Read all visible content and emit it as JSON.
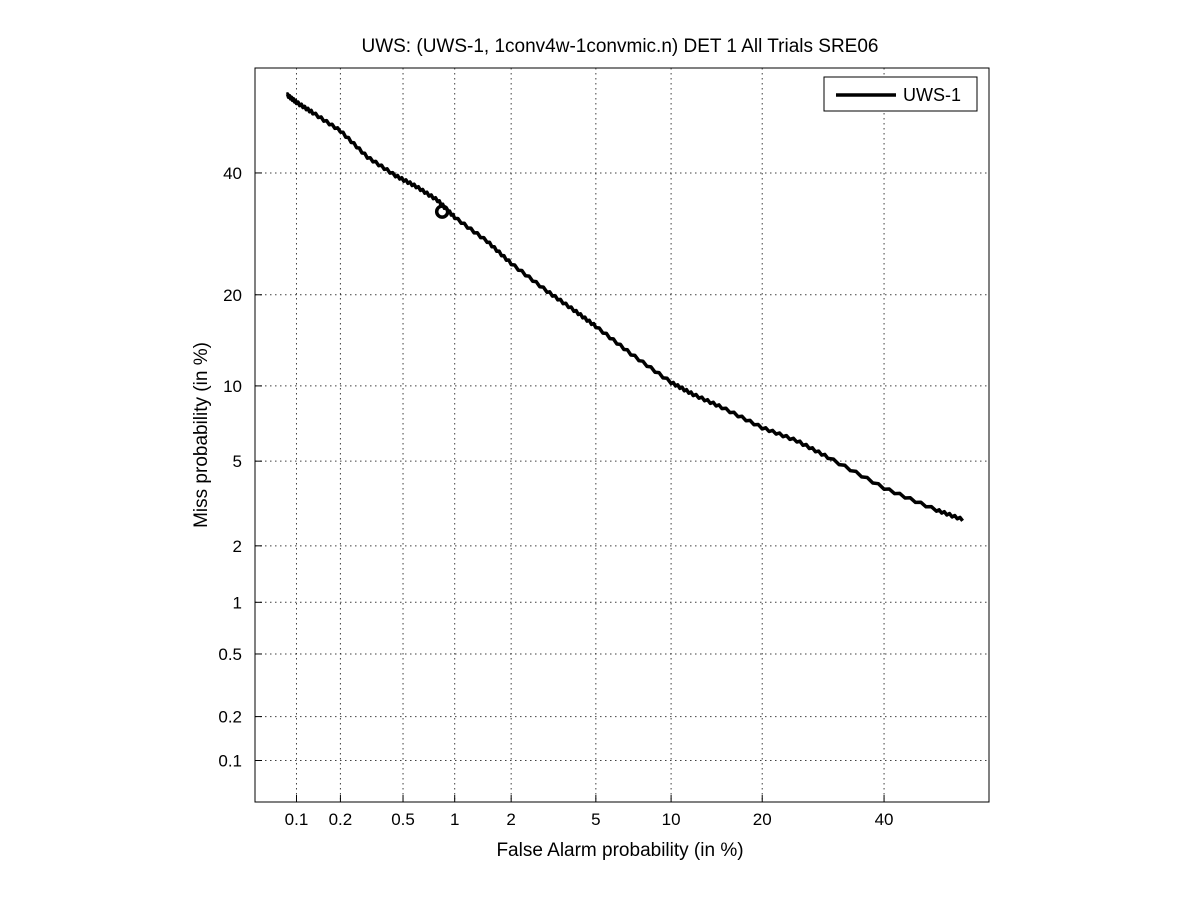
{
  "chart_data": {
    "type": "line",
    "title": "UWS: (UWS-1, 1conv4w-1convmic.n) DET 1 All Trials SRE06",
    "xlabel": "False Alarm probability (in %)",
    "ylabel": "Miss probability (in %)",
    "scale": "normal-deviate (probit)",
    "xlim": [
      0.05,
      60
    ],
    "ylim": [
      0.05,
      60
    ],
    "x_ticks": [
      0.1,
      0.2,
      0.5,
      1,
      2,
      5,
      10,
      20,
      40
    ],
    "x_tick_labels": [
      "0.1",
      "0.2",
      "0.5",
      "1",
      "2",
      "5",
      "10",
      "20",
      "40"
    ],
    "y_ticks": [
      0.1,
      0.2,
      0.5,
      1,
      2,
      5,
      10,
      20,
      40
    ],
    "y_tick_labels": [
      "0.1",
      "0.2",
      "0.5",
      "1",
      "2",
      "5",
      "10",
      "20",
      "40"
    ],
    "grid": true,
    "legend_position": "top-right",
    "series": [
      {
        "name": "UWS-1",
        "color": "#000000",
        "x": [
          0.085,
          0.1,
          0.13,
          0.2,
          0.3,
          0.45,
          0.6,
          0.8,
          1.0,
          1.5,
          2.0,
          3.0,
          4.0,
          5.0,
          7.0,
          10.0,
          12.0,
          15.0,
          20.0,
          25.0,
          30.0,
          40.0,
          50.0,
          55.0
        ],
        "y": [
          55.0,
          53.5,
          51.5,
          48.0,
          43.0,
          39.5,
          37.5,
          35.0,
          32.0,
          28.0,
          24.5,
          20.5,
          18.0,
          16.0,
          13.0,
          10.3,
          9.3,
          8.3,
          6.9,
          6.1,
          5.2,
          3.8,
          3.0,
          2.7
        ]
      }
    ],
    "markers": [
      {
        "series": "UWS-1",
        "x": 0.85,
        "y": 33.0,
        "shape": "open-circle"
      }
    ]
  }
}
